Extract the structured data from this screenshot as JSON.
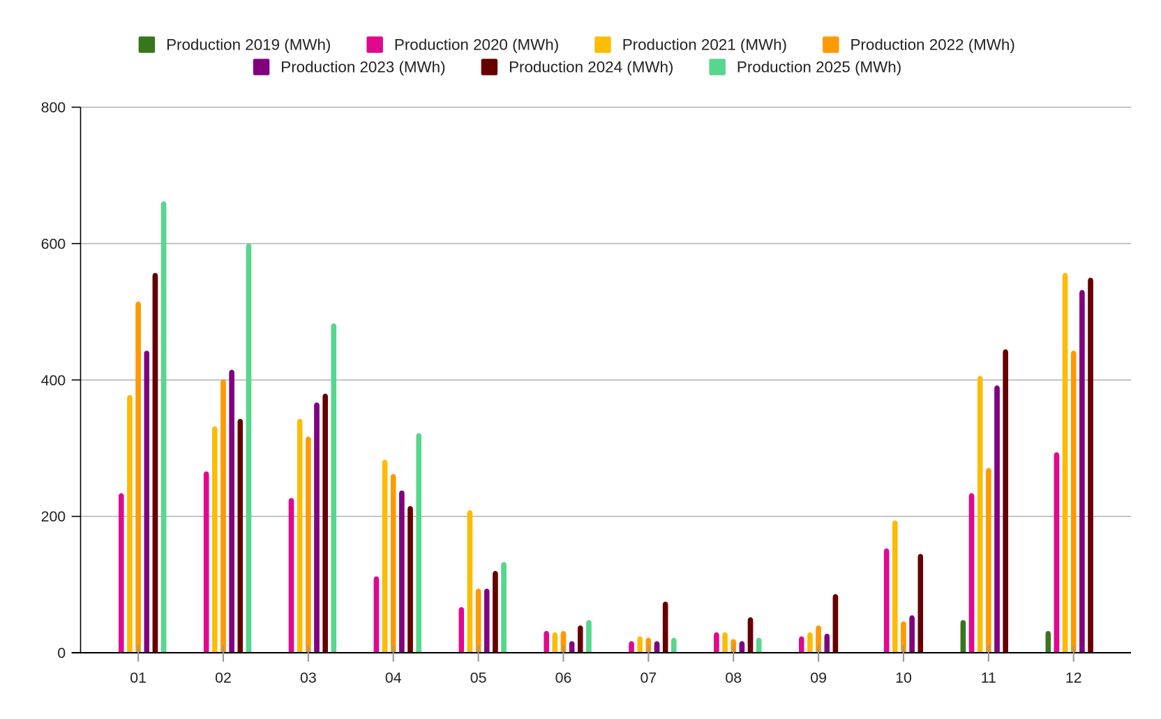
{
  "chart_data": {
    "type": "bar",
    "title": "",
    "xlabel": "",
    "ylabel": "",
    "ylim": [
      0,
      800
    ],
    "yticks": [
      "0",
      "200",
      "400",
      "600",
      "800"
    ],
    "grid": true,
    "legend_position": "top-center",
    "categories": [
      "01",
      "02",
      "03",
      "04",
      "05",
      "06",
      "07",
      "08",
      "09",
      "10",
      "11",
      "12"
    ],
    "series": [
      {
        "name": "Production 2019 (MWh)",
        "color": "#38761d",
        "values": [
          null,
          null,
          null,
          null,
          null,
          null,
          null,
          null,
          null,
          null,
          48,
          32
        ]
      },
      {
        "name": "Production 2020 (MWh)",
        "color": "#e0088f",
        "values": [
          234,
          266,
          227,
          112,
          67,
          32,
          17,
          30,
          24,
          153,
          234,
          294
        ]
      },
      {
        "name": "Production 2021 (MWh)",
        "color": "#fbbc04",
        "values": [
          378,
          332,
          343,
          283,
          209,
          30,
          24,
          30,
          30,
          194,
          406,
          557
        ]
      },
      {
        "name": "Production 2022 (MWh)",
        "color": "#ff9900",
        "values": [
          515,
          401,
          317,
          262,
          94,
          32,
          22,
          20,
          40,
          46,
          271,
          443
        ]
      },
      {
        "name": "Production 2023 (MWh)",
        "color": "#800080",
        "values": [
          443,
          415,
          367,
          238,
          94,
          17,
          17,
          17,
          28,
          55,
          392,
          532
        ]
      },
      {
        "name": "Production 2024 (MWh)",
        "color": "#660000",
        "values": [
          557,
          343,
          380,
          215,
          120,
          40,
          75,
          52,
          86,
          145,
          445,
          550
        ]
      },
      {
        "name": "Production 2025 (MWh)",
        "color": "#57d68d",
        "values": [
          662,
          600,
          483,
          322,
          133,
          48,
          22,
          22,
          null,
          null,
          null,
          null
        ]
      }
    ]
  }
}
